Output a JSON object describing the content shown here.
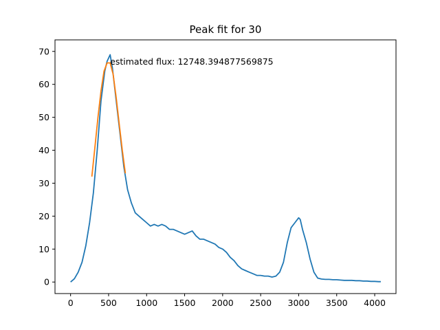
{
  "chart_data": {
    "type": "line",
    "title": "Peak fit for 30",
    "xlabel": "",
    "ylabel": "",
    "xlim": [
      -205,
      4280
    ],
    "ylim": [
      -3.5,
      73.5
    ],
    "xticks": [
      0,
      500,
      1000,
      1500,
      2000,
      2500,
      3000,
      3500,
      4000
    ],
    "yticks": [
      0,
      10,
      20,
      30,
      40,
      50,
      60,
      70
    ],
    "grid": false,
    "annotation": {
      "text": "estimated flux: 12748.394877569875",
      "x": 520,
      "y": 67
    },
    "series": [
      {
        "color": "#1f77b4",
        "x": [
          0,
          50,
          100,
          150,
          200,
          250,
          300,
          350,
          400,
          450,
          480,
          500,
          520,
          550,
          600,
          650,
          700,
          750,
          800,
          850,
          900,
          950,
          1000,
          1050,
          1100,
          1150,
          1200,
          1250,
          1300,
          1350,
          1400,
          1450,
          1500,
          1550,
          1600,
          1650,
          1700,
          1750,
          1800,
          1850,
          1900,
          1950,
          2000,
          2050,
          2100,
          2150,
          2200,
          2250,
          2300,
          2350,
          2400,
          2450,
          2500,
          2550,
          2600,
          2650,
          2700,
          2750,
          2800,
          2850,
          2900,
          2950,
          3000,
          3020,
          3050,
          3100,
          3150,
          3200,
          3250,
          3300,
          3350,
          3400,
          3450,
          3500,
          3550,
          3600,
          3650,
          3700,
          3750,
          3800,
          3850,
          3900,
          3950,
          4000,
          4050,
          4080
        ],
        "y": [
          0,
          1,
          3,
          6,
          11,
          18,
          27,
          40,
          55,
          64,
          67,
          68,
          69,
          65,
          55,
          45,
          35,
          28,
          24,
          21,
          20,
          19,
          18,
          17,
          17.5,
          17,
          17.5,
          17,
          16,
          16,
          15.5,
          15,
          14.5,
          15,
          15.5,
          14,
          13,
          13,
          12.5,
          12,
          11.5,
          10.5,
          10,
          9,
          7.5,
          6.5,
          5,
          4,
          3.5,
          3,
          2.5,
          2,
          2,
          1.8,
          1.8,
          1.5,
          1.8,
          3,
          6,
          12,
          16.5,
          18,
          19.5,
          19,
          16,
          12,
          7,
          3,
          1.2,
          0.9,
          0.8,
          0.8,
          0.7,
          0.7,
          0.6,
          0.5,
          0.5,
          0.5,
          0.4,
          0.4,
          0.3,
          0.3,
          0.2,
          0.2,
          0.1,
          0.1
        ]
      },
      {
        "color": "#ff7f0e",
        "x": [
          280,
          320,
          360,
          400,
          440,
          480,
          520,
          560,
          600,
          640,
          680,
          720
        ],
        "y": [
          32,
          41,
          50,
          58,
          64,
          66.5,
          66.5,
          63,
          56,
          48,
          40,
          33
        ]
      }
    ]
  }
}
